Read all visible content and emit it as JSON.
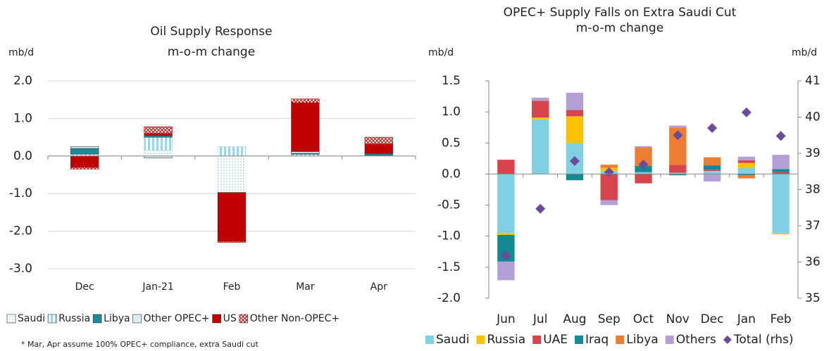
{
  "chart_data": [
    {
      "type": "bar",
      "stacked": true,
      "title": "Oil Supply Response",
      "subtitle": "m-o-m change",
      "ylabel": "mb/d",
      "categories": [
        "Dec",
        "Jan-21",
        "Feb",
        "Mar",
        "Apr"
      ],
      "ylim": [
        -3,
        2
      ],
      "yticks": [
        {
          "value": 2,
          "label": "2.0"
        },
        {
          "value": 1,
          "label": "1.0"
        },
        {
          "value": 0,
          "label": "0.0"
        },
        {
          "value": -1,
          "label": "-1.0"
        },
        {
          "value": -2,
          "label": "-2.0"
        },
        {
          "value": -3,
          "label": "-3.0"
        }
      ],
      "grid": true,
      "legend": "bottom",
      "series": [
        {
          "name": "Saudi",
          "color": "#dcecef",
          "pattern": "dots",
          "values": [
            0,
            0.15,
            -0.97,
            0,
            0
          ]
        },
        {
          "name": "Russia",
          "color": "#9fd4e6",
          "pattern": "vstripes",
          "values": [
            0.05,
            0.35,
            0.25,
            0.05,
            0.02
          ]
        },
        {
          "name": "Libya",
          "color": "#1d8a99",
          "pattern": "solid",
          "values": [
            0.15,
            0.05,
            0,
            0.02,
            0.05
          ]
        },
        {
          "name": "Other OPEC+",
          "color": "#d6eef4",
          "pattern": "solid",
          "values": [
            0.05,
            -0.05,
            0,
            0.05,
            0
          ]
        },
        {
          "name": "US",
          "color": "#c00000",
          "pattern": "solid",
          "values": [
            -0.3,
            0.05,
            -1.3,
            1.3,
            0.25
          ]
        },
        {
          "name": "Other Non-OPEC+",
          "color": "#c00000",
          "pattern": "hatch",
          "values": [
            -0.05,
            0.18,
            -0.03,
            0.1,
            0.18
          ]
        }
      ],
      "note": "* Mar, Apr assume 100% OPEC+ compliance, extra Saudi cut"
    },
    {
      "type": "bar",
      "stacked": true,
      "title": "OPEC+ Supply Falls on Extra Saudi Cut",
      "subtitle": "m-o-m change",
      "ylabel": "mb/d",
      "y2label": "mb/d",
      "categories": [
        "Jun",
        "Jul",
        "Aug",
        "Sep",
        "Oct",
        "Nov",
        "Dec",
        "Jan",
        "Feb"
      ],
      "ylim": [
        -2,
        1.5
      ],
      "yticks": [
        1.5,
        {
          "value": 1,
          "label": "1.0"
        },
        0.5,
        {
          "value": 0,
          "label": "0.0"
        },
        -0.5,
        {
          "value": -1,
          "label": "-1.0"
        },
        -1.5,
        {
          "value": -2,
          "label": "-2.0"
        }
      ],
      "y2lim": [
        35,
        41
      ],
      "y2ticks": [
        35,
        36,
        37,
        38,
        39,
        40,
        41
      ],
      "grid": false,
      "legend": "bottom",
      "series": [
        {
          "name": "Saudi",
          "color": "#7fd0e2",
          "values": [
            -0.95,
            0.88,
            0.5,
            0.05,
            0.03,
            0.02,
            0.05,
            0.1,
            -0.95
          ]
        },
        {
          "name": "Russia",
          "color": "#ffc000",
          "values": [
            -0.03,
            0.03,
            0.43,
            0.05,
            0,
            0,
            0,
            0.08,
            -0.02
          ]
        },
        {
          "name": "UAE",
          "color": "#d9434c",
          "values": [
            0.23,
            0.27,
            0.1,
            -0.42,
            -0.15,
            0.13,
            0.02,
            0.04,
            0.03
          ]
        },
        {
          "name": "Iraq",
          "color": "#138a91",
          "values": [
            -0.43,
            0,
            -0.1,
            0,
            0.1,
            -0.02,
            0.07,
            -0.02,
            0.05
          ]
        },
        {
          "name": "Libya",
          "color": "#ed7d31",
          "values": [
            0,
            0,
            0,
            0.05,
            0.3,
            0.6,
            0.13,
            -0.05,
            0
          ]
        },
        {
          "name": "Others",
          "color": "#b4a0d6",
          "values": [
            -0.3,
            0.05,
            0.28,
            -0.08,
            0.02,
            0.03,
            -0.12,
            0.06,
            0.23
          ]
        },
        {
          "name": "Total (rhs)",
          "color": "#6b4c9a",
          "type": "scatter",
          "marker": "diamond",
          "axis": "y2",
          "values": [
            36.18,
            37.47,
            38.79,
            38.48,
            38.69,
            39.5,
            39.7,
            40.13,
            39.48
          ]
        }
      ]
    }
  ]
}
